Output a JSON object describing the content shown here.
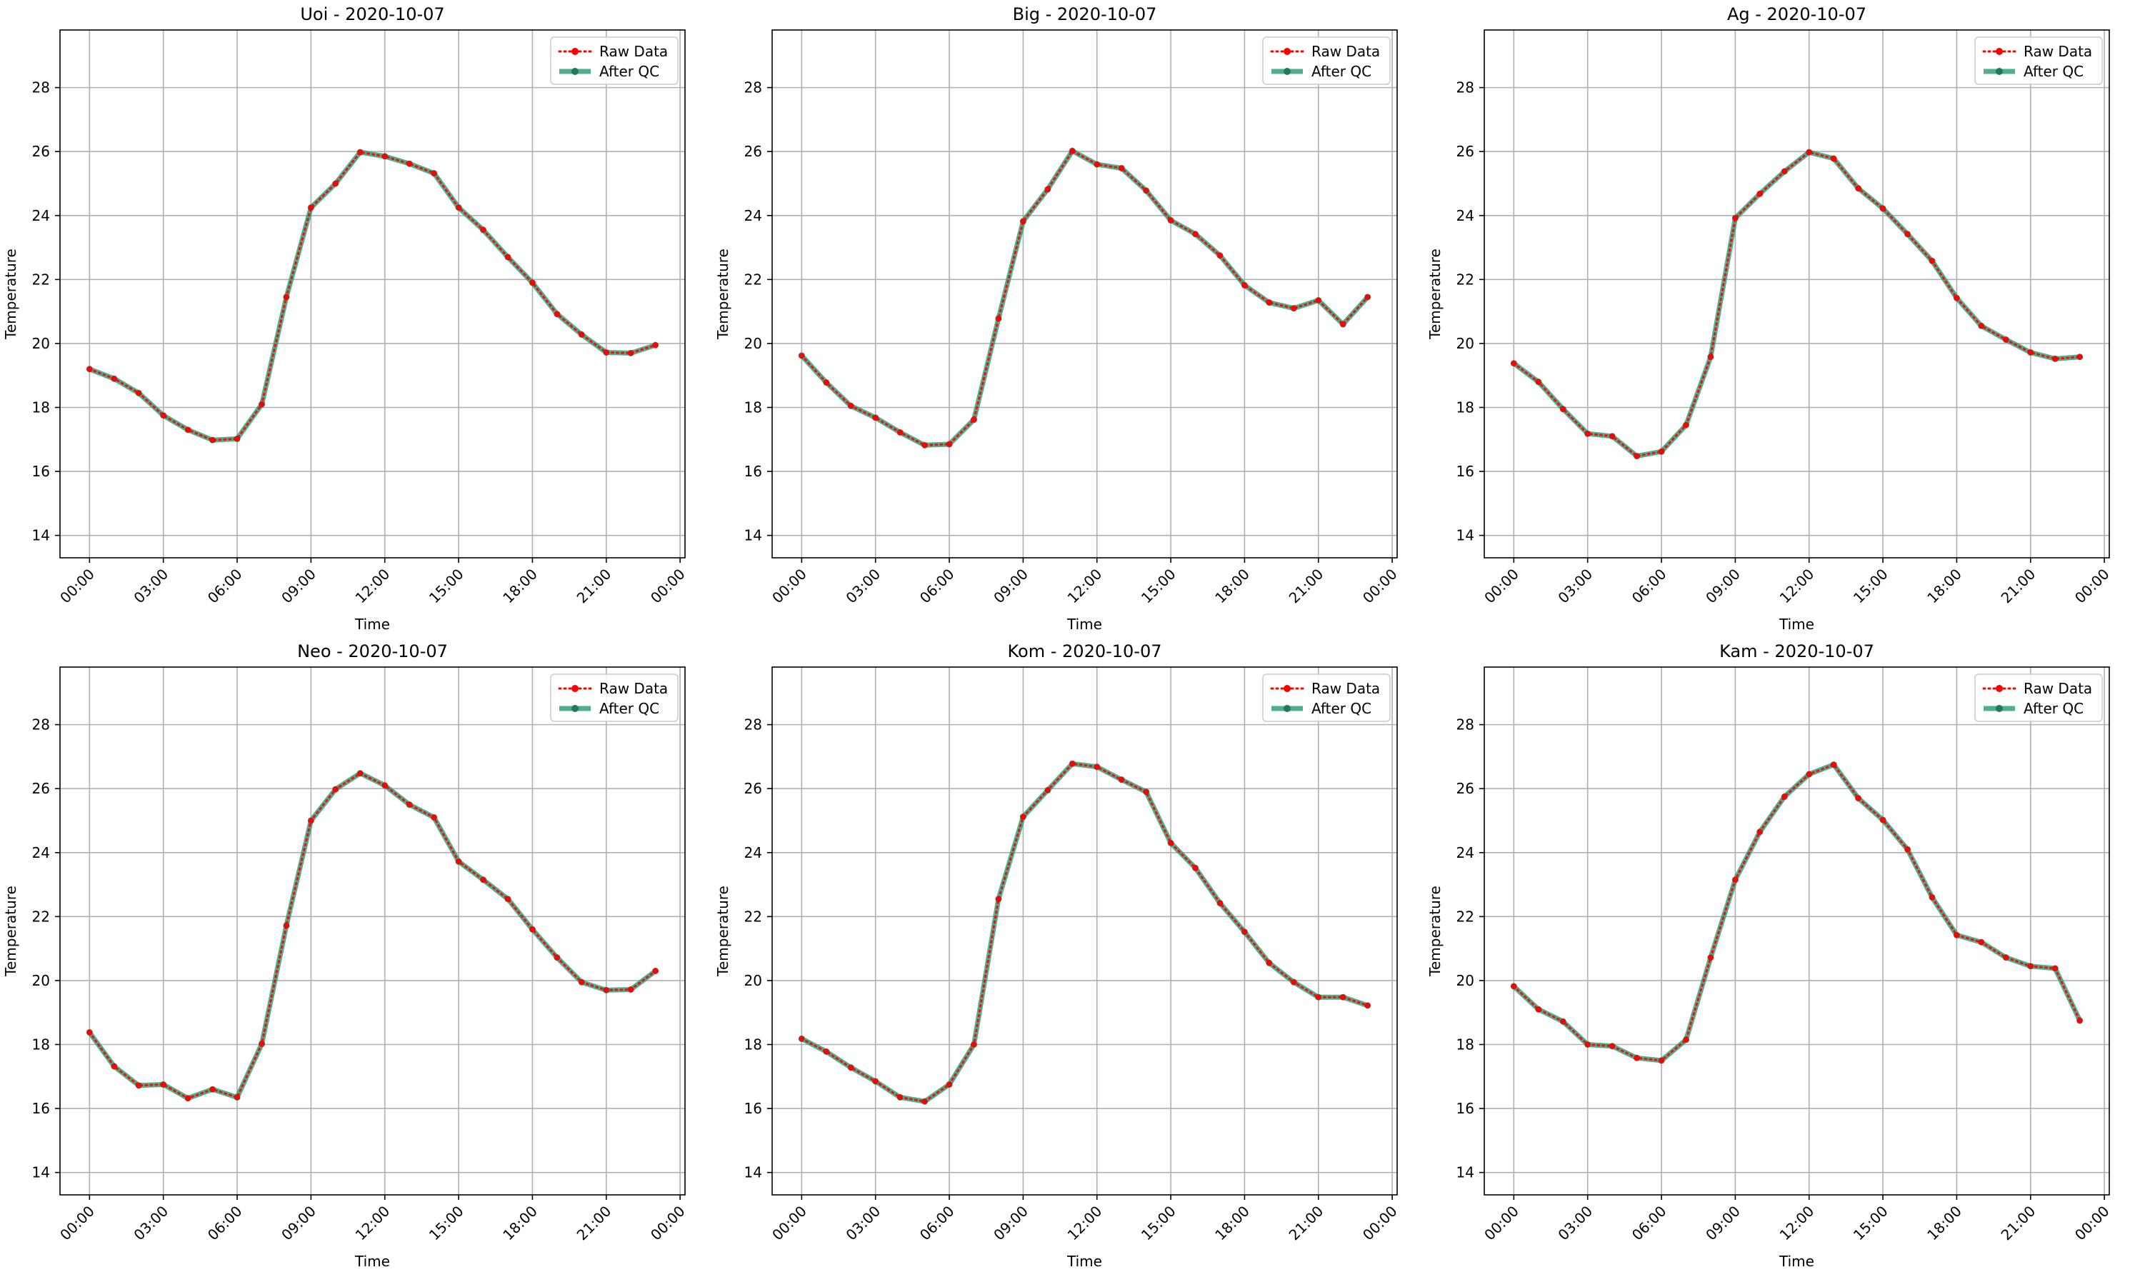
{
  "chart_data": [
    {
      "type": "line",
      "title": "Uoi - 2020-10-07",
      "xlabel": "Time",
      "ylabel": "Temperature",
      "x_ticks": [
        "00:00",
        "03:00",
        "06:00",
        "09:00",
        "12:00",
        "15:00",
        "18:00",
        "21:00",
        "00:00"
      ],
      "y_ticks": [
        14,
        16,
        18,
        20,
        22,
        24,
        26,
        28
      ],
      "ylim": [
        13.3,
        29.8
      ],
      "xlim_hours": [
        -1.2,
        24.2
      ],
      "grid": true,
      "legend_position": "top-right",
      "x_hours": [
        0,
        1,
        2,
        3,
        4,
        5,
        6,
        7,
        8,
        9,
        10,
        11,
        12,
        13,
        14,
        15,
        16,
        17,
        18,
        19,
        20,
        21,
        22,
        23
      ],
      "series": [
        {
          "name": "Raw Data",
          "color": "#ff0000",
          "style": "dotted",
          "values": [
            19.2,
            18.9,
            18.45,
            17.75,
            17.3,
            16.98,
            17.02,
            18.1,
            21.45,
            24.25,
            25.0,
            25.98,
            25.85,
            25.62,
            25.32,
            24.25,
            23.55,
            22.7,
            21.9,
            20.92,
            20.28,
            19.72,
            19.7,
            19.95
          ]
        },
        {
          "name": "After QC",
          "color": "#2a9d74",
          "style": "solid",
          "values": [
            19.2,
            18.9,
            18.45,
            17.75,
            17.3,
            16.98,
            17.02,
            18.1,
            21.45,
            24.25,
            25.0,
            25.98,
            25.85,
            25.62,
            25.32,
            24.25,
            23.55,
            22.7,
            21.9,
            20.92,
            20.28,
            19.72,
            19.7,
            19.95
          ]
        }
      ]
    },
    {
      "type": "line",
      "title": "Big - 2020-10-07",
      "xlabel": "Time",
      "ylabel": "Temperature",
      "x_ticks": [
        "00:00",
        "03:00",
        "06:00",
        "09:00",
        "12:00",
        "15:00",
        "18:00",
        "21:00",
        "00:00"
      ],
      "y_ticks": [
        14,
        16,
        18,
        20,
        22,
        24,
        26,
        28
      ],
      "ylim": [
        13.3,
        29.8
      ],
      "xlim_hours": [
        -1.2,
        24.2
      ],
      "grid": true,
      "legend_position": "top-right",
      "x_hours": [
        0,
        1,
        2,
        3,
        4,
        5,
        6,
        7,
        8,
        9,
        10,
        11,
        12,
        13,
        14,
        15,
        16,
        17,
        18,
        19,
        20,
        21,
        22,
        23
      ],
      "series": [
        {
          "name": "Raw Data",
          "color": "#ff0000",
          "style": "dotted",
          "values": [
            19.62,
            18.78,
            18.05,
            17.68,
            17.22,
            16.82,
            16.85,
            17.62,
            20.78,
            23.82,
            24.82,
            26.02,
            25.6,
            25.48,
            24.78,
            23.85,
            23.42,
            22.75,
            21.82,
            21.28,
            21.1,
            21.35,
            20.6,
            21.45
          ]
        },
        {
          "name": "After QC",
          "color": "#2a9d74",
          "style": "solid",
          "values": [
            19.62,
            18.78,
            18.05,
            17.68,
            17.22,
            16.82,
            16.85,
            17.62,
            20.78,
            23.82,
            24.82,
            26.02,
            25.6,
            25.48,
            24.78,
            23.85,
            23.42,
            22.75,
            21.82,
            21.28,
            21.1,
            21.35,
            20.6,
            21.45
          ]
        }
      ]
    },
    {
      "type": "line",
      "title": "Ag - 2020-10-07",
      "xlabel": "Time",
      "ylabel": "Temperature",
      "x_ticks": [
        "00:00",
        "03:00",
        "06:00",
        "09:00",
        "12:00",
        "15:00",
        "18:00",
        "21:00",
        "00:00"
      ],
      "y_ticks": [
        14,
        16,
        18,
        20,
        22,
        24,
        26,
        28
      ],
      "ylim": [
        13.3,
        29.8
      ],
      "xlim_hours": [
        -1.2,
        24.2
      ],
      "grid": true,
      "legend_position": "top-right",
      "x_hours": [
        0,
        1,
        2,
        3,
        4,
        5,
        6,
        7,
        8,
        9,
        10,
        11,
        12,
        13,
        14,
        15,
        16,
        17,
        18,
        19,
        20,
        21,
        22,
        23
      ],
      "series": [
        {
          "name": "Raw Data",
          "color": "#ff0000",
          "style": "dotted",
          "values": [
            19.38,
            18.8,
            17.95,
            17.18,
            17.1,
            16.48,
            16.62,
            17.45,
            19.58,
            23.92,
            24.68,
            25.38,
            25.98,
            25.78,
            24.85,
            24.22,
            23.42,
            22.58,
            21.42,
            20.55,
            20.12,
            19.72,
            19.52,
            19.58
          ]
        },
        {
          "name": "After QC",
          "color": "#2a9d74",
          "style": "solid",
          "values": [
            19.38,
            18.8,
            17.95,
            17.18,
            17.1,
            16.48,
            16.62,
            17.45,
            19.58,
            23.92,
            24.68,
            25.38,
            25.98,
            25.78,
            24.85,
            24.22,
            23.42,
            22.58,
            21.42,
            20.55,
            20.12,
            19.72,
            19.52,
            19.58
          ]
        }
      ]
    },
    {
      "type": "line",
      "title": "Neo - 2020-10-07",
      "xlabel": "Time",
      "ylabel": "Temperature",
      "x_ticks": [
        "00:00",
        "03:00",
        "06:00",
        "09:00",
        "12:00",
        "15:00",
        "18:00",
        "21:00",
        "00:00"
      ],
      "y_ticks": [
        14,
        16,
        18,
        20,
        22,
        24,
        26,
        28
      ],
      "ylim": [
        13.3,
        29.8
      ],
      "xlim_hours": [
        -1.2,
        24.2
      ],
      "grid": true,
      "legend_position": "top-right",
      "x_hours": [
        0,
        1,
        2,
        3,
        4,
        5,
        6,
        7,
        8,
        9,
        10,
        11,
        12,
        13,
        14,
        15,
        16,
        17,
        18,
        19,
        20,
        21,
        22,
        23
      ],
      "series": [
        {
          "name": "Raw Data",
          "color": "#ff0000",
          "style": "dotted",
          "values": [
            18.38,
            17.32,
            16.72,
            16.75,
            16.32,
            16.6,
            16.35,
            18.02,
            21.72,
            25.0,
            25.98,
            26.48,
            26.1,
            25.5,
            25.1,
            23.72,
            23.15,
            22.55,
            21.6,
            20.72,
            19.95,
            19.7,
            19.72,
            20.3
          ]
        },
        {
          "name": "After QC",
          "color": "#2a9d74",
          "style": "solid",
          "values": [
            18.38,
            17.32,
            16.72,
            16.75,
            16.32,
            16.6,
            16.35,
            18.02,
            21.72,
            25.0,
            25.98,
            26.48,
            26.1,
            25.5,
            25.1,
            23.72,
            23.15,
            22.55,
            21.6,
            20.72,
            19.95,
            19.7,
            19.72,
            20.3
          ]
        }
      ]
    },
    {
      "type": "line",
      "title": "Kom - 2020-10-07",
      "xlabel": "Time",
      "ylabel": "Temperature",
      "x_ticks": [
        "00:00",
        "03:00",
        "06:00",
        "09:00",
        "12:00",
        "15:00",
        "18:00",
        "21:00",
        "00:00"
      ],
      "y_ticks": [
        14,
        16,
        18,
        20,
        22,
        24,
        26,
        28
      ],
      "ylim": [
        13.3,
        29.8
      ],
      "xlim_hours": [
        -1.2,
        24.2
      ],
      "grid": true,
      "legend_position": "top-right",
      "x_hours": [
        0,
        1,
        2,
        3,
        4,
        5,
        6,
        7,
        8,
        9,
        10,
        11,
        12,
        13,
        14,
        15,
        16,
        17,
        18,
        19,
        20,
        21,
        22,
        23
      ],
      "series": [
        {
          "name": "Raw Data",
          "color": "#ff0000",
          "style": "dotted",
          "values": [
            18.18,
            17.78,
            17.28,
            16.85,
            16.35,
            16.22,
            16.75,
            18.0,
            22.55,
            25.12,
            25.95,
            26.78,
            26.68,
            26.28,
            25.9,
            24.3,
            23.52,
            22.42,
            21.52,
            20.55,
            19.95,
            19.48,
            19.48,
            19.22
          ]
        },
        {
          "name": "After QC",
          "color": "#2a9d74",
          "style": "solid",
          "values": [
            18.18,
            17.78,
            17.28,
            16.85,
            16.35,
            16.22,
            16.75,
            18.0,
            22.55,
            25.12,
            25.95,
            26.78,
            26.68,
            26.28,
            25.9,
            24.3,
            23.52,
            22.42,
            21.52,
            20.55,
            19.95,
            19.48,
            19.48,
            19.22
          ]
        }
      ]
    },
    {
      "type": "line",
      "title": "Kam - 2020-10-07",
      "xlabel": "Time",
      "ylabel": "Temperature",
      "x_ticks": [
        "00:00",
        "03:00",
        "06:00",
        "09:00",
        "12:00",
        "15:00",
        "18:00",
        "21:00",
        "00:00"
      ],
      "y_ticks": [
        14,
        16,
        18,
        20,
        22,
        24,
        26,
        28
      ],
      "ylim": [
        13.3,
        29.8
      ],
      "xlim_hours": [
        -1.2,
        24.2
      ],
      "grid": true,
      "legend_position": "top-right",
      "x_hours": [
        0,
        1,
        2,
        3,
        4,
        5,
        6,
        7,
        8,
        9,
        10,
        11,
        12,
        13,
        14,
        15,
        16,
        17,
        18,
        19,
        20,
        21,
        22,
        23
      ],
      "series": [
        {
          "name": "Raw Data",
          "color": "#ff0000",
          "style": "dotted",
          "values": [
            19.82,
            19.1,
            18.72,
            18.0,
            17.95,
            17.58,
            17.5,
            18.15,
            20.72,
            23.15,
            24.65,
            25.75,
            26.45,
            26.75,
            25.7,
            25.02,
            24.1,
            22.6,
            21.42,
            21.2,
            20.72,
            20.45,
            20.38,
            18.75
          ]
        },
        {
          "name": "After QC",
          "color": "#2a9d74",
          "style": "solid",
          "values": [
            19.82,
            19.1,
            18.72,
            18.0,
            17.95,
            17.58,
            17.5,
            18.15,
            20.72,
            23.15,
            24.65,
            25.75,
            26.45,
            26.75,
            25.7,
            25.02,
            24.1,
            22.6,
            21.42,
            21.2,
            20.72,
            20.45,
            20.38,
            18.75
          ]
        }
      ]
    }
  ]
}
